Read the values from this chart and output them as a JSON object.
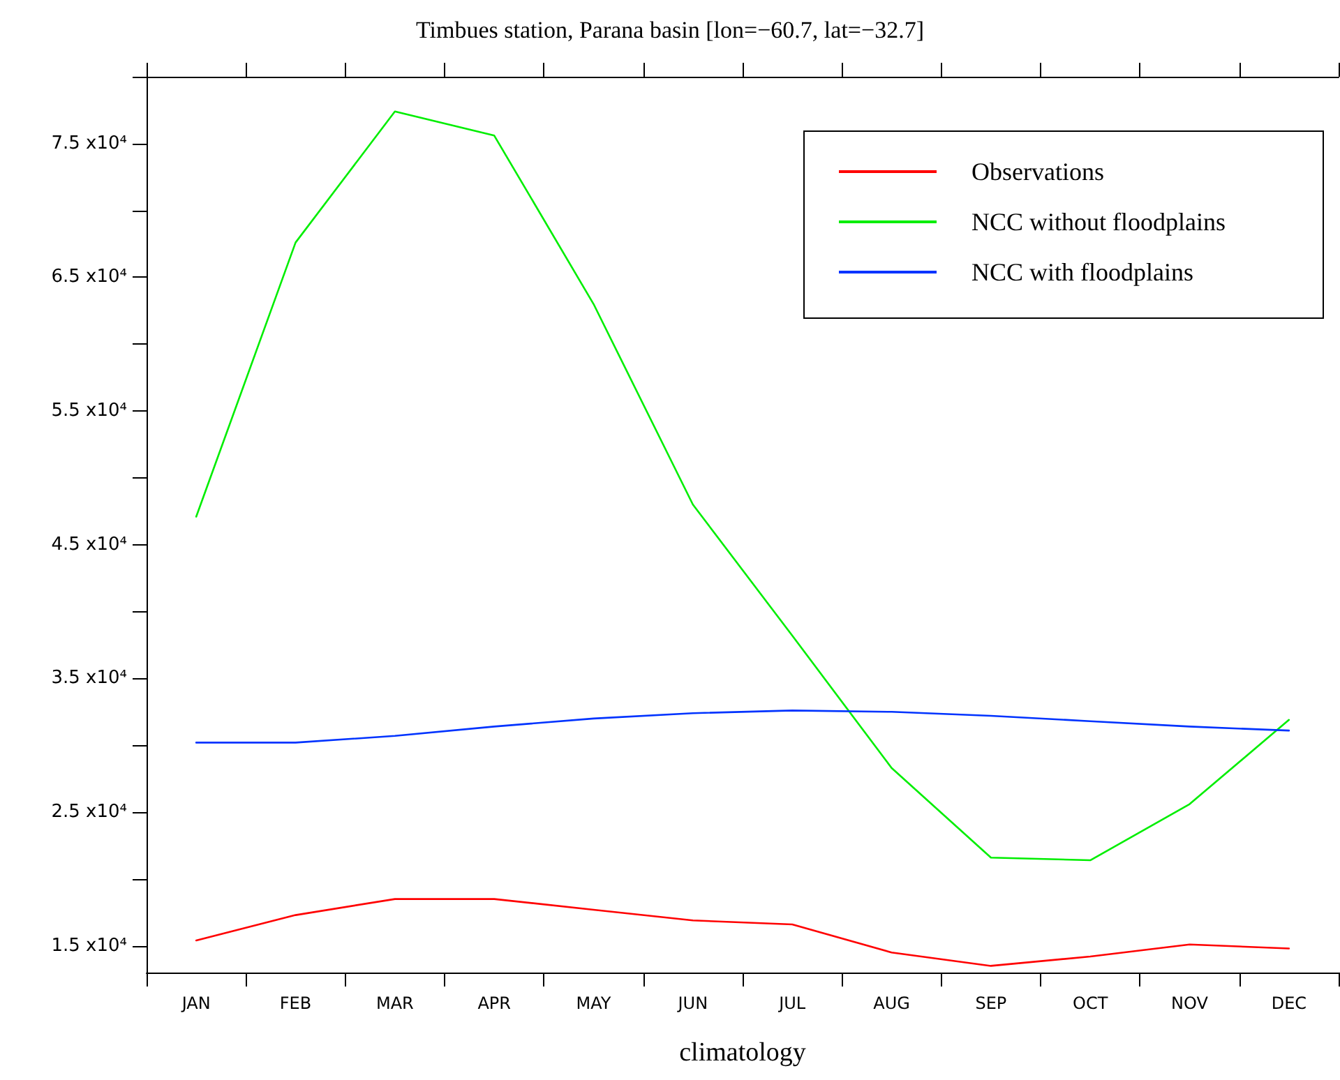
{
  "chart_data": {
    "type": "line",
    "title": "Timbues station, Parana basin [lon=−60.7, lat=−32.7]",
    "xlabel": "climatology",
    "categories": [
      "JAN",
      "FEB",
      "MAR",
      "APR",
      "MAY",
      "JUN",
      "JUL",
      "AUG",
      "SEP",
      "OCT",
      "NOV",
      "DEC"
    ],
    "series": [
      {
        "name": "Observations",
        "color": "#ff0000",
        "values": [
          15400,
          17300,
          18500,
          18500,
          17700,
          16900,
          16600,
          14500,
          13500,
          14200,
          15100,
          14800
        ]
      },
      {
        "name": "NCC without floodplains",
        "color": "#00ee00",
        "values": [
          47100,
          67600,
          77400,
          75600,
          63000,
          48000,
          38200,
          28300,
          21600,
          21400,
          25600,
          31900
        ]
      },
      {
        "name": "NCC with floodplains",
        "color": "#0033ff",
        "values": [
          30200,
          30200,
          30700,
          31400,
          32000,
          32400,
          32600,
          32500,
          32200,
          31800,
          31400,
          31100
        ]
      }
    ],
    "ylim": [
      13000,
      80000
    ],
    "yticks": [
      {
        "value": 15000,
        "label": "1.5 x10⁴"
      },
      {
        "value": 20000,
        "label": null
      },
      {
        "value": 25000,
        "label": "2.5 x10⁴"
      },
      {
        "value": 30000,
        "label": null
      },
      {
        "value": 35000,
        "label": "3.5 x10⁴"
      },
      {
        "value": 40000,
        "label": null
      },
      {
        "value": 45000,
        "label": "4.5 x10⁴"
      },
      {
        "value": 50000,
        "label": null
      },
      {
        "value": 55000,
        "label": "5.5 x10⁴"
      },
      {
        "value": 60000,
        "label": null
      },
      {
        "value": 65000,
        "label": "6.5 x10⁴"
      },
      {
        "value": 70000,
        "label": null
      },
      {
        "value": 75000,
        "label": "7.5 x10⁴"
      },
      {
        "value": 80000,
        "label": null
      }
    ],
    "grid": false,
    "legend": "top right",
    "marker": "none",
    "line_style": "solid"
  }
}
